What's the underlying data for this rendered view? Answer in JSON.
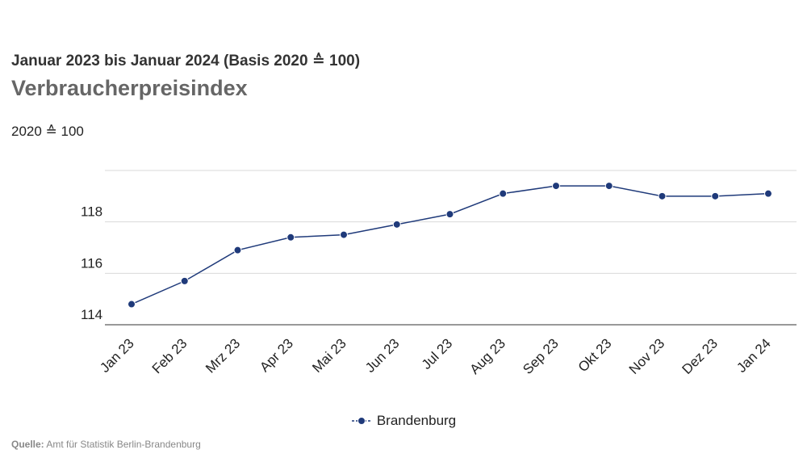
{
  "header": {
    "subtitle": "Januar 2023 bis Januar 2024 (Basis 2020 ≙ 100)",
    "title": "Verbraucherpreisindex"
  },
  "axis_unit_label": "2020 ≙ 100",
  "legend": {
    "marker": "-●-",
    "label": "Brandenburg"
  },
  "source": {
    "label": "Quelle:",
    "text": "Amt für Statistik Berlin-Brandenburg"
  },
  "colors": {
    "series": "#1f3a7a",
    "grid": "#d9d9d9",
    "axis": "#333333",
    "text": "#222222"
  },
  "chart_data": {
    "type": "line",
    "title": "Verbraucherpreisindex",
    "subtitle": "Januar 2023 bis Januar 2024 (Basis 2020 ≙ 100)",
    "ylabel": "2020 ≙ 100",
    "xlabel": "",
    "categories": [
      "Jan 23",
      "Feb 23",
      "Mrz 23",
      "Apr 23",
      "Mai 23",
      "Jun 23",
      "Jul 23",
      "Aug 23",
      "Sep 23",
      "Okt 23",
      "Nov 23",
      "Dez 23",
      "Jan 24"
    ],
    "series": [
      {
        "name": "Brandenburg",
        "values": [
          114.8,
          115.7,
          116.9,
          117.4,
          117.5,
          117.9,
          118.3,
          119.1,
          119.4,
          119.4,
          119.0,
          119.0,
          119.1
        ]
      }
    ],
    "yticks": [
      114,
      116,
      118,
      120
    ],
    "ytick_labels": [
      "114",
      "116",
      "118",
      ""
    ],
    "ylim": [
      114,
      120
    ],
    "grid": true,
    "legend_position": "bottom-center"
  }
}
